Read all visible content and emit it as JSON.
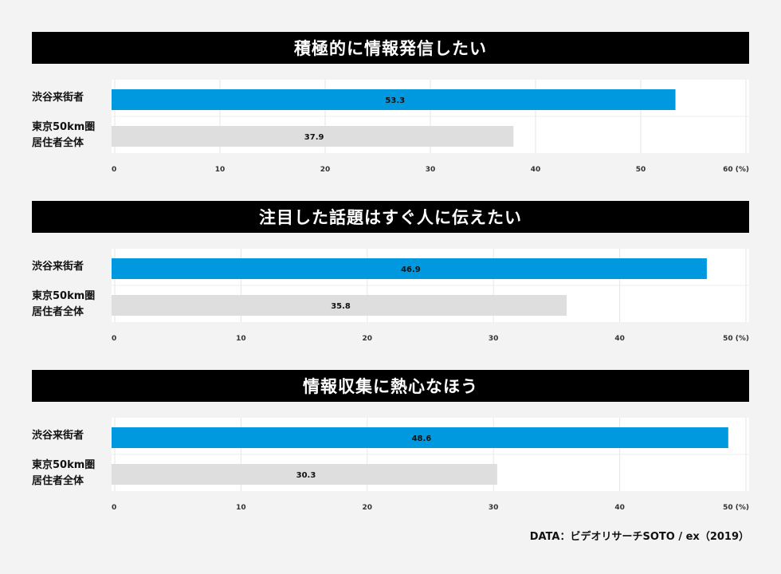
{
  "colors": {
    "highlight": "#0099e0",
    "baseline": "#dedede",
    "title_bg": "#000000"
  },
  "row_labels": {
    "shibuya": "渋谷来街者",
    "tokyo_line1": "東京50km圏",
    "tokyo_line2": "居住者全体"
  },
  "source": "DATA：ビデオリサーチSOTO / ex（2019）",
  "chart_data": [
    {
      "type": "bar",
      "orientation": "horizontal",
      "title": "積極的に情報発信したい",
      "categories": [
        "渋谷来街者",
        "東京50km圏居住者全体"
      ],
      "values": [
        53.3,
        37.9
      ],
      "xlim": [
        0,
        60
      ],
      "ticks": [
        "0",
        "10",
        "20",
        "30",
        "40",
        "50",
        "60 (%)"
      ],
      "grid": true
    },
    {
      "type": "bar",
      "orientation": "horizontal",
      "title": "注目した話題はすぐ人に伝えたい",
      "categories": [
        "渋谷来街者",
        "東京50km圏居住者全体"
      ],
      "values": [
        46.9,
        35.8
      ],
      "xlim": [
        0,
        50
      ],
      "ticks": [
        "0",
        "10",
        "20",
        "30",
        "40",
        "50 (%)"
      ],
      "grid": true
    },
    {
      "type": "bar",
      "orientation": "horizontal",
      "title": "情報収集に熱心なほう",
      "categories": [
        "渋谷来街者",
        "東京50km圏居住者全体"
      ],
      "values": [
        48.6,
        30.3
      ],
      "xlim": [
        0,
        50
      ],
      "ticks": [
        "0",
        "10",
        "20",
        "30",
        "40",
        "50 (%)"
      ],
      "grid": true
    }
  ]
}
